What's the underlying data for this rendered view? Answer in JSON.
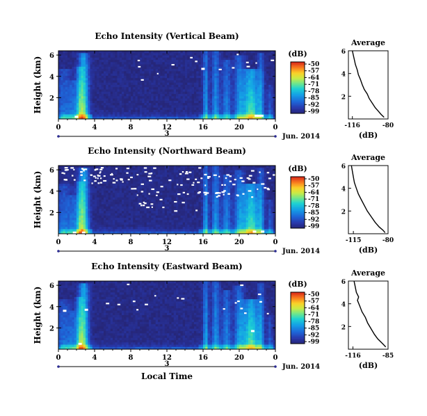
{
  "chart_data": [
    {
      "type": "heatmap",
      "title": "Echo Intensity (Vertical Beam)",
      "ylabel": "Height (km)",
      "y_ticks": [
        "6",
        "4",
        "2"
      ],
      "x_ticks": [
        "0",
        "4",
        "8",
        "12",
        "16",
        "20",
        "0"
      ],
      "day_label": "3",
      "date_label": "Jun. 2014",
      "colorbar": {
        "unit": "(dB)",
        "ticks": [
          "-50",
          "-57",
          "-64",
          "-71",
          "-78",
          "-85",
          "-92",
          "-99"
        ]
      },
      "profile": {
        "title": "Average",
        "xlabel": "(dB)",
        "x_ticks": [
          "-116",
          "-80"
        ],
        "y_ticks": [
          "6",
          "4",
          "2"
        ],
        "xlim": [
          -120,
          -80
        ],
        "ylim": [
          0,
          6
        ],
        "points": [
          [
            -116,
            6.0
          ],
          [
            -115,
            5.6
          ],
          [
            -114,
            5.2
          ],
          [
            -113,
            4.8
          ],
          [
            -111,
            4.3
          ],
          [
            -110,
            3.9
          ],
          [
            -108,
            3.5
          ],
          [
            -106,
            3.0
          ],
          [
            -104,
            2.6
          ],
          [
            -101,
            2.2
          ],
          [
            -99,
            1.8
          ],
          [
            -96,
            1.4
          ],
          [
            -93,
            1.0
          ],
          [
            -90,
            0.7
          ],
          [
            -87,
            0.4
          ],
          [
            -84,
            0.15
          ]
        ]
      }
    },
    {
      "type": "heatmap",
      "title": "Echo Intensity (Northward Beam)",
      "ylabel": "Height (km)",
      "y_ticks": [
        "6",
        "4",
        "2"
      ],
      "x_ticks": [
        "0",
        "4",
        "8",
        "12",
        "16",
        "20",
        "0"
      ],
      "day_label": "3",
      "date_label": "Jun. 2014",
      "colorbar": {
        "unit": "(dB)",
        "ticks": [
          "-50",
          "-57",
          "-64",
          "-71",
          "-78",
          "-85",
          "-92",
          "-99"
        ]
      },
      "profile": {
        "title": "Average",
        "xlabel": "(dB)",
        "x_ticks": [
          "-115",
          "-80"
        ],
        "y_ticks": [
          "6",
          "4",
          "2"
        ],
        "xlim": [
          -120,
          -80
        ],
        "ylim": [
          0,
          6
        ],
        "points": [
          [
            -117,
            6.0
          ],
          [
            -116,
            5.5
          ],
          [
            -115,
            5.0
          ],
          [
            -114,
            4.5
          ],
          [
            -112,
            4.0
          ],
          [
            -110,
            3.5
          ],
          [
            -107,
            3.0
          ],
          [
            -104,
            2.5
          ],
          [
            -101,
            2.0
          ],
          [
            -97,
            1.5
          ],
          [
            -93,
            1.0
          ],
          [
            -89,
            0.6
          ],
          [
            -85,
            0.3
          ],
          [
            -83,
            0.1
          ]
        ]
      }
    },
    {
      "type": "heatmap",
      "title": "Echo Intensity (Eastward Beam)",
      "ylabel": "Height (km)",
      "y_ticks": [
        "6",
        "4",
        "2"
      ],
      "x_ticks": [
        "0",
        "4",
        "8",
        "12",
        "16",
        "20",
        "0"
      ],
      "day_label": "3",
      "date_label": "Jun. 2014",
      "xlabel": "Local Time",
      "colorbar": {
        "unit": "(dB)",
        "ticks": [
          "-50",
          "-57",
          "-64",
          "-71",
          "-78",
          "-85",
          "-92",
          "-99"
        ]
      },
      "profile": {
        "title": "Average",
        "xlabel": "(dB)",
        "x_ticks": [
          "-116",
          "-85"
        ],
        "y_ticks": [
          "6",
          "4",
          "2"
        ],
        "xlim": [
          -120,
          -85
        ],
        "ylim": [
          0,
          6
        ],
        "points": [
          [
            -115,
            6.0
          ],
          [
            -114,
            5.5
          ],
          [
            -113,
            5.0
          ],
          [
            -111,
            4.6
          ],
          [
            -112,
            4.3
          ],
          [
            -110,
            3.8
          ],
          [
            -108,
            3.3
          ],
          [
            -105,
            2.8
          ],
          [
            -103,
            2.3
          ],
          [
            -100,
            1.8
          ],
          [
            -97,
            1.3
          ],
          [
            -94,
            0.9
          ],
          [
            -90,
            0.5
          ],
          [
            -87,
            0.2
          ]
        ]
      }
    }
  ]
}
